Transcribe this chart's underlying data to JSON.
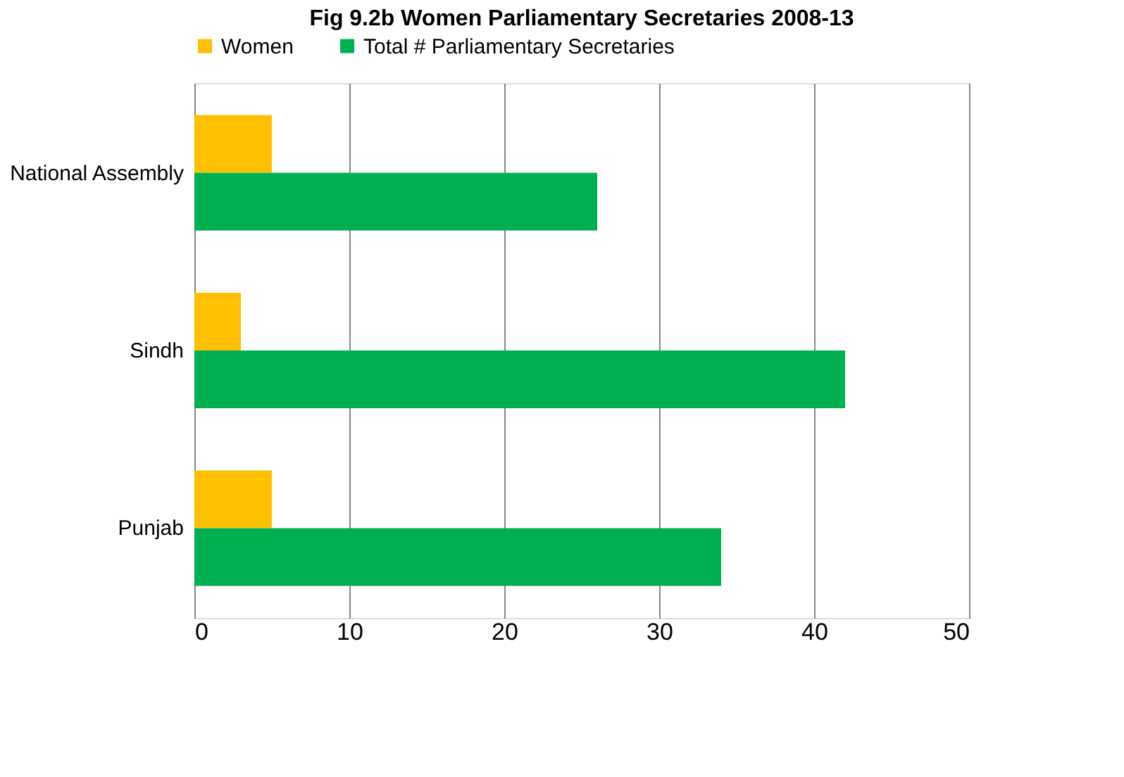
{
  "chart_data": {
    "type": "bar",
    "orientation": "horizontal",
    "title": "Fig 9.2b Women Parliamentary Secretaries 2008-13",
    "categories": [
      "National Assembly",
      "Sindh",
      "Punjab"
    ],
    "series": [
      {
        "name": "Women",
        "color": "#ffc000",
        "values": [
          5,
          3,
          5
        ]
      },
      {
        "name": "Total # Parliamentary Secretaries",
        "color": "#00b050",
        "values": [
          26,
          42,
          34
        ]
      }
    ],
    "xlim": [
      0,
      50
    ],
    "xticks": [
      0,
      10,
      20,
      30,
      40,
      50
    ],
    "grid": "x",
    "legend": "top"
  }
}
